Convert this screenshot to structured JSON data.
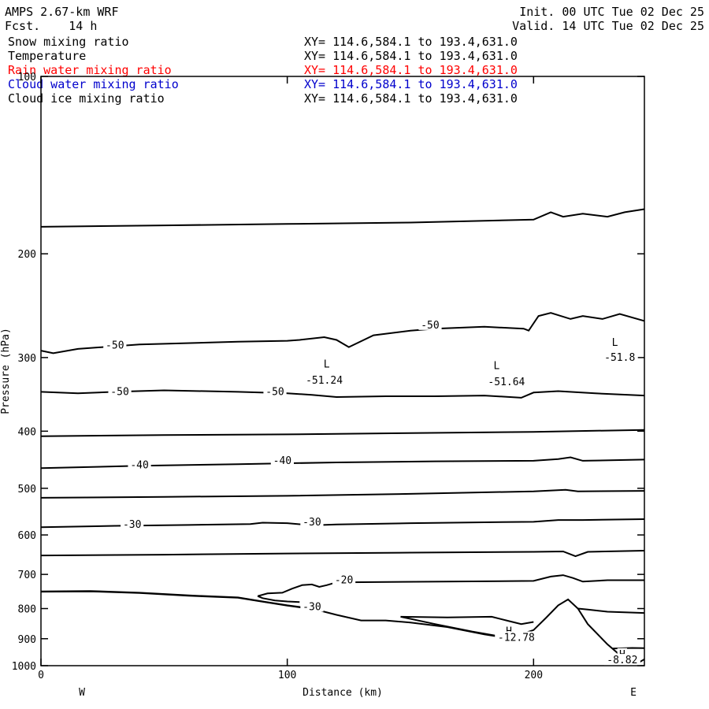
{
  "header": {
    "model": "AMPS 2.67-km WRF",
    "fcst": "Fcst.    14 h",
    "init": "Init. 00 UTC Tue 02 Dec 25",
    "valid": "Valid. 14 UTC Tue 02 Dec 25"
  },
  "colors": {
    "black": "#000000",
    "rain": "#ff0000",
    "cloud_water": "#0000cc"
  },
  "fields": [
    {
      "name": "Snow mixing ratio",
      "xy": "XY= 114.6,584.1 to 193.4,631.0",
      "color": "#000000"
    },
    {
      "name": "Temperature",
      "xy": "XY= 114.6,584.1 to 193.4,631.0",
      "color": "#000000"
    },
    {
      "name": "Rain water mixing ratio",
      "xy": "XY= 114.6,584.1 to 193.4,631.0",
      "color": "#ff0000"
    },
    {
      "name": "Cloud water mixing ratio",
      "xy": "XY= 114.6,584.1 to 193.4,631.0",
      "color": "#0000cc"
    },
    {
      "name": "Cloud ice mixing ratio",
      "xy": "XY= 114.6,584.1 to 193.4,631.0",
      "color": "#000000"
    }
  ],
  "chart_data": {
    "type": "line",
    "xlabel": "Distance (km)",
    "ylabel": "Pressure (hPa)",
    "xlim": [
      0,
      245
    ],
    "ylim": [
      100,
      1000
    ],
    "y_scale": "log",
    "x_ticks": [
      0,
      100,
      200
    ],
    "y_ticks": [
      100,
      200,
      300,
      400,
      500,
      600,
      700,
      800,
      900,
      1000
    ],
    "left_end_label": "W",
    "right_end_label": "E",
    "grid": false,
    "contours": [
      {
        "points": [
          [
            0,
            180
          ],
          [
            50,
            179
          ],
          [
            100,
            178
          ],
          [
            150,
            177
          ],
          [
            200,
            175
          ],
          [
            207,
            170
          ],
          [
            212,
            173
          ],
          [
            220,
            171
          ],
          [
            230,
            173
          ],
          [
            237,
            170
          ],
          [
            245,
            168
          ]
        ]
      },
      {
        "points": [
          [
            0,
            292
          ],
          [
            5,
            295
          ],
          [
            15,
            290
          ],
          [
            40,
            285
          ],
          [
            80,
            282
          ],
          [
            100,
            281
          ],
          [
            105,
            280
          ],
          [
            115,
            277
          ],
          [
            120,
            280
          ],
          [
            125,
            288
          ],
          [
            135,
            275
          ],
          [
            150,
            270
          ],
          [
            160,
            268
          ],
          [
            180,
            266
          ],
          [
            196,
            268
          ],
          [
            198,
            270
          ],
          [
            202,
            255
          ],
          [
            207,
            252
          ],
          [
            215,
            258
          ],
          [
            220,
            255
          ],
          [
            228,
            258
          ],
          [
            235,
            253
          ],
          [
            245,
            260
          ]
        ]
      },
      {
        "points": [
          [
            0,
            343
          ],
          [
            15,
            345
          ],
          [
            30,
            343
          ],
          [
            50,
            341
          ],
          [
            80,
            343
          ],
          [
            100,
            345
          ],
          [
            110,
            347
          ],
          [
            120,
            350
          ],
          [
            140,
            349
          ],
          [
            160,
            349
          ],
          [
            180,
            348
          ],
          [
            195,
            351
          ],
          [
            200,
            344
          ],
          [
            210,
            342
          ],
          [
            225,
            345
          ],
          [
            245,
            348
          ]
        ]
      },
      {
        "points": [
          [
            0,
            408
          ],
          [
            50,
            406
          ],
          [
            100,
            405
          ],
          [
            150,
            403
          ],
          [
            200,
            401
          ],
          [
            245,
            398
          ]
        ]
      },
      {
        "points": [
          [
            0,
            462
          ],
          [
            40,
            458
          ],
          [
            80,
            455
          ],
          [
            120,
            452
          ],
          [
            160,
            450
          ],
          [
            200,
            449
          ],
          [
            210,
            446
          ],
          [
            215,
            443
          ],
          [
            220,
            449
          ],
          [
            245,
            447
          ]
        ]
      },
      {
        "points": [
          [
            0,
            519
          ],
          [
            50,
            517
          ],
          [
            100,
            515
          ],
          [
            150,
            511
          ],
          [
            200,
            506
          ],
          [
            213,
            503
          ],
          [
            218,
            506
          ],
          [
            245,
            505
          ]
        ]
      },
      {
        "points": [
          [
            0,
            582
          ],
          [
            30,
            579
          ],
          [
            60,
            577
          ],
          [
            85,
            575
          ],
          [
            90,
            572
          ],
          [
            100,
            573
          ],
          [
            110,
            578
          ],
          [
            120,
            576
          ],
          [
            150,
            573
          ],
          [
            180,
            571
          ],
          [
            200,
            570
          ],
          [
            210,
            566
          ],
          [
            220,
            566
          ],
          [
            245,
            564
          ]
        ]
      },
      {
        "points": [
          [
            0,
            650
          ],
          [
            50,
            648
          ],
          [
            100,
            645
          ],
          [
            150,
            643
          ],
          [
            200,
            641
          ],
          [
            212,
            640
          ],
          [
            217,
            652
          ],
          [
            222,
            641
          ],
          [
            245,
            638
          ]
        ]
      },
      {
        "points": [
          [
            88,
            762
          ],
          [
            92,
            754
          ],
          [
            98,
            752
          ],
          [
            102,
            740
          ],
          [
            106,
            730
          ],
          [
            110,
            728
          ],
          [
            113,
            735
          ],
          [
            116,
            730
          ],
          [
            120,
            722
          ],
          [
            200,
            718
          ],
          [
            207,
            706
          ],
          [
            212,
            702
          ],
          [
            216,
            710
          ],
          [
            220,
            720
          ],
          [
            230,
            716
          ],
          [
            245,
            716
          ]
        ]
      },
      {
        "points": [
          [
            88,
            762
          ],
          [
            90,
            768
          ],
          [
            95,
            775
          ],
          [
            100,
            778
          ],
          [
            105,
            780
          ]
        ]
      },
      {
        "points": [
          [
            0,
            748
          ],
          [
            20,
            747
          ],
          [
            40,
            752
          ],
          [
            60,
            760
          ],
          [
            80,
            766
          ],
          [
            90,
            778
          ],
          [
            100,
            790
          ],
          [
            110,
            800
          ],
          [
            120,
            820
          ],
          [
            130,
            838
          ],
          [
            140,
            838
          ],
          [
            150,
            845
          ],
          [
            165,
            860
          ],
          [
            180,
            885
          ],
          [
            190,
            898
          ],
          [
            200,
            870
          ],
          [
            205,
            830
          ],
          [
            210,
            790
          ],
          [
            214,
            772
          ],
          [
            218,
            800
          ],
          [
            222,
            850
          ],
          [
            230,
            920
          ],
          [
            237,
            975
          ],
          [
            242,
            992
          ],
          [
            245,
            975
          ]
        ]
      },
      {
        "points": [
          [
            0,
            749
          ],
          [
            20,
            748
          ],
          [
            40,
            753
          ],
          [
            60,
            761
          ],
          [
            80,
            767
          ],
          [
            100,
            791
          ],
          [
            110,
            801
          ]
        ]
      },
      {
        "points": [
          [
            146,
            826
          ],
          [
            165,
            828
          ],
          [
            183,
            826
          ],
          [
            190,
            840
          ],
          [
            195,
            850
          ],
          [
            200,
            843
          ]
        ]
      },
      {
        "points": [
          [
            146,
            826
          ],
          [
            160,
            850
          ],
          [
            175,
            875
          ],
          [
            185,
            890
          ],
          [
            190,
            896
          ]
        ]
      },
      {
        "points": [
          [
            218,
            800
          ],
          [
            222,
            803
          ],
          [
            230,
            810
          ],
          [
            245,
            814
          ]
        ]
      },
      {
        "points": [
          [
            232,
            935
          ],
          [
            240,
            933
          ],
          [
            245,
            934
          ]
        ]
      }
    ],
    "annotations": [
      {
        "text": "-50",
        "x": 30,
        "p": 288
      },
      {
        "text": "-50",
        "x": 158,
        "p": 266
      },
      {
        "text": "-50",
        "x": 32,
        "p": 345
      },
      {
        "text": "-50",
        "x": 95,
        "p": 345
      },
      {
        "text": "-40",
        "x": 40,
        "p": 460
      },
      {
        "text": "-40",
        "x": 98,
        "p": 452
      },
      {
        "text": "-30",
        "x": 37,
        "p": 580
      },
      {
        "text": "-30",
        "x": 110,
        "p": 575
      },
      {
        "text": "-20",
        "x": 123,
        "p": 720
      },
      {
        "text": "-30",
        "x": 110,
        "p": 800
      },
      {
        "text": "L",
        "x": 116,
        "p": 310
      },
      {
        "text": "-51.24",
        "x": 115,
        "p": 330
      },
      {
        "text": "L",
        "x": 185,
        "p": 312
      },
      {
        "text": "-51.64",
        "x": 189,
        "p": 332
      },
      {
        "text": "L",
        "x": 233,
        "p": 285
      },
      {
        "text": "-51.8",
        "x": 235,
        "p": 302
      },
      {
        "text": "H",
        "x": 190,
        "p": 880
      },
      {
        "text": "-12.78",
        "x": 193,
        "p": 902
      },
      {
        "text": "H",
        "x": 236,
        "p": 963
      },
      {
        "text": "-8.82",
        "x": 236,
        "p": 985
      }
    ]
  }
}
